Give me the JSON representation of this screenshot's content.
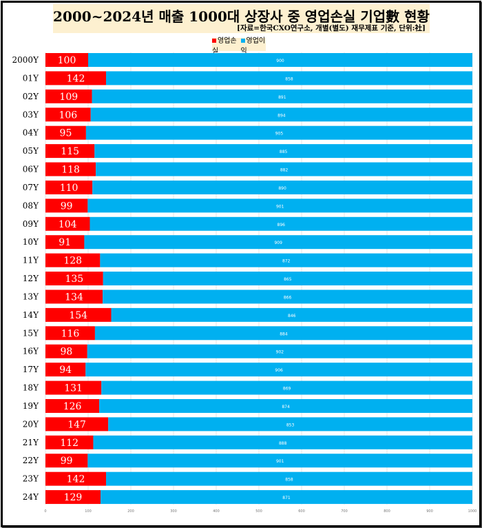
{
  "chart_data": {
    "type": "bar",
    "orientation": "horizontal",
    "stacked": true,
    "title": "2000~2024년 매출 1000대 상장사 중 영업손실 기업數 현황",
    "subtitle": "[자료=한국CXO연구소, 개별(별도) 재무제표 기준, 단위:社]",
    "categories": [
      "2000Y",
      "01Y",
      "02Y",
      "03Y",
      "04Y",
      "05Y",
      "06Y",
      "07Y",
      "08Y",
      "09Y",
      "10Y",
      "11Y",
      "12Y",
      "13Y",
      "14Y",
      "15Y",
      "16Y",
      "17Y",
      "18Y",
      "19Y",
      "20Y",
      "21Y",
      "22Y",
      "23Y",
      "24Y"
    ],
    "series": [
      {
        "name": "영업손실",
        "color": "#ff0000",
        "values": [
          100,
          142,
          109,
          106,
          95,
          115,
          118,
          110,
          99,
          104,
          91,
          128,
          135,
          134,
          154,
          116,
          98,
          94,
          131,
          126,
          147,
          112,
          99,
          142,
          129
        ]
      },
      {
        "name": "영업이익",
        "color": "#00b0f0",
        "values": [
          900,
          858,
          891,
          894,
          905,
          885,
          882,
          890,
          901,
          896,
          909,
          872,
          865,
          866,
          846,
          884,
          902,
          906,
          869,
          874,
          853,
          888,
          901,
          858,
          871
        ]
      }
    ],
    "xlim": [
      0,
      1000
    ],
    "xticks": [
      "0",
      "100",
      "200",
      "300",
      "400",
      "500",
      "600",
      "700",
      "800",
      "900",
      "1000"
    ],
    "grid": true,
    "legend": "top"
  }
}
